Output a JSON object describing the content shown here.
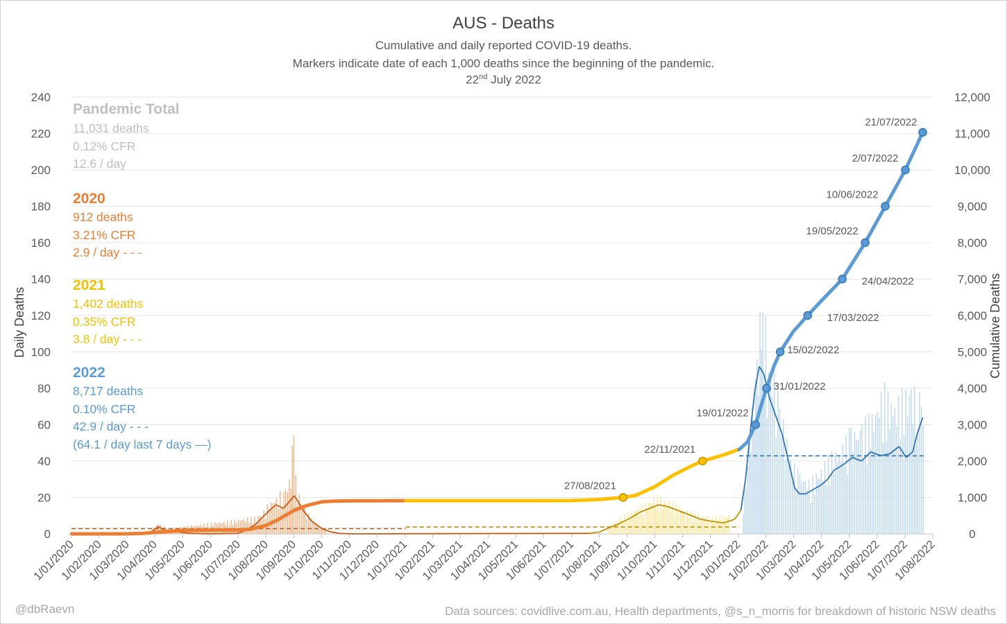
{
  "chart_data": {
    "type": "line",
    "title": "AUS - Deaths",
    "subtitle_1": "Cumulative and daily reported COVID-19 deaths.",
    "subtitle_2": "Markers indicate date of each 1,000 deaths since the beginning of the pandemic.",
    "date_day": "22",
    "date_suffix": "nd",
    "date_rest": "July 2022",
    "y_left_label": "Daily Deaths",
    "y_right_label": "Cumulative Deaths",
    "y_left_range": [
      0,
      240
    ],
    "y_right_range": [
      0,
      12000
    ],
    "y_left_ticks": [
      "0",
      "20",
      "40",
      "60",
      "80",
      "100",
      "120",
      "140",
      "160",
      "180",
      "200",
      "220",
      "240"
    ],
    "y_right_ticks": [
      "0",
      "1,000",
      "2,000",
      "3,000",
      "4,000",
      "5,000",
      "6,000",
      "7,000",
      "8,000",
      "9,000",
      "10,000",
      "11,000",
      "12,000"
    ],
    "x_ticks": [
      "1/01/2020",
      "1/02/2020",
      "1/03/2020",
      "1/04/2020",
      "1/05/2020",
      "1/06/2020",
      "1/07/2020",
      "1/08/2020",
      "1/09/2020",
      "1/10/2020",
      "1/11/2020",
      "1/12/2020",
      "1/01/2021",
      "1/02/2021",
      "1/03/2021",
      "1/04/2021",
      "1/05/2021",
      "1/06/2021",
      "1/07/2021",
      "1/08/2021",
      "1/09/2021",
      "1/10/2021",
      "1/11/2021",
      "1/12/2021",
      "1/01/2022",
      "1/02/2022",
      "1/03/2022",
      "1/04/2022",
      "1/05/2022",
      "1/06/2022",
      "1/07/2022",
      "1/08/2022"
    ],
    "gridlines": true,
    "series": [
      {
        "key": "cum2020",
        "color": "#ed7d31",
        "points": [
          [
            "2020-01-01",
            0
          ],
          [
            "2020-03-01",
            0
          ],
          [
            "2020-03-20",
            15
          ],
          [
            "2020-04-01",
            40
          ],
          [
            "2020-04-20",
            70
          ],
          [
            "2020-05-01",
            98
          ],
          [
            "2020-06-01",
            103
          ],
          [
            "2020-07-01",
            106
          ],
          [
            "2020-07-15",
            130
          ],
          [
            "2020-08-01",
            230
          ],
          [
            "2020-08-15",
            400
          ],
          [
            "2020-09-01",
            650
          ],
          [
            "2020-09-15",
            780
          ],
          [
            "2020-10-01",
            880
          ],
          [
            "2020-10-15",
            900
          ],
          [
            "2020-11-01",
            907
          ],
          [
            "2020-12-31",
            912
          ]
        ]
      },
      {
        "key": "cum2021",
        "color": "#ffc000",
        "points": [
          [
            "2021-01-01",
            912
          ],
          [
            "2021-06-01",
            912
          ],
          [
            "2021-07-01",
            915
          ],
          [
            "2021-07-15",
            925
          ],
          [
            "2021-08-01",
            945
          ],
          [
            "2021-08-15",
            975
          ],
          [
            "2021-08-27",
            1000
          ],
          [
            "2021-09-10",
            1060
          ],
          [
            "2021-10-01",
            1300
          ],
          [
            "2021-10-20",
            1600
          ],
          [
            "2021-11-10",
            1870
          ],
          [
            "2021-11-22",
            2000
          ],
          [
            "2021-12-15",
            2170
          ],
          [
            "2021-12-31",
            2314
          ]
        ]
      },
      {
        "key": "cum2022",
        "color": "#5b9bd5",
        "points": [
          [
            "2022-01-01",
            2314
          ],
          [
            "2022-01-10",
            2520
          ],
          [
            "2022-01-19",
            3000
          ],
          [
            "2022-01-26",
            3600
          ],
          [
            "2022-01-31",
            4000
          ],
          [
            "2022-02-08",
            4600
          ],
          [
            "2022-02-15",
            5000
          ],
          [
            "2022-03-01",
            5550
          ],
          [
            "2022-03-17",
            6000
          ],
          [
            "2022-04-01",
            6400
          ],
          [
            "2022-04-24",
            7000
          ],
          [
            "2022-05-19",
            8000
          ],
          [
            "2022-06-10",
            9000
          ],
          [
            "2022-07-02",
            10000
          ],
          [
            "2022-07-21",
            11031
          ]
        ]
      }
    ],
    "daily_avg_lines": [
      {
        "key": "avg2020",
        "color": "#c55a11",
        "value": 2.9,
        "from": "2020-01-01",
        "to": "2021-01-01"
      },
      {
        "key": "avg2021",
        "color": "#bf9000",
        "value": 3.8,
        "from": "2021-01-01",
        "to": "2022-01-01"
      },
      {
        "key": "avg2022",
        "color": "#2e75b6",
        "value": 42.9,
        "from": "2022-01-01",
        "to": "2022-07-22"
      }
    ],
    "daily_rolling_7d": [
      [
        "2020-03-15",
        0.2
      ],
      [
        "2020-03-28",
        1
      ],
      [
        "2020-04-05",
        4
      ],
      [
        "2020-04-12",
        2
      ],
      [
        "2020-04-25",
        1.2
      ],
      [
        "2020-05-10",
        0.3
      ],
      [
        "2020-06-01",
        0
      ],
      [
        "2020-07-01",
        0.3
      ],
      [
        "2020-07-10",
        2
      ],
      [
        "2020-07-20",
        5
      ],
      [
        "2020-07-28",
        9
      ],
      [
        "2020-08-05",
        13
      ],
      [
        "2020-08-12",
        16
      ],
      [
        "2020-08-20",
        14
      ],
      [
        "2020-08-27",
        18
      ],
      [
        "2020-09-01",
        21
      ],
      [
        "2020-09-06",
        17
      ],
      [
        "2020-09-12",
        12
      ],
      [
        "2020-09-20",
        7
      ],
      [
        "2020-10-01",
        3
      ],
      [
        "2020-10-10",
        1.2
      ],
      [
        "2020-10-20",
        0.3
      ],
      [
        "2020-11-05",
        0
      ],
      [
        "2021-07-20",
        0.3
      ],
      [
        "2021-08-01",
        1
      ],
      [
        "2021-08-10",
        3
      ],
      [
        "2021-08-20",
        5
      ],
      [
        "2021-08-28",
        7
      ],
      [
        "2021-09-05",
        9
      ],
      [
        "2021-09-15",
        12
      ],
      [
        "2021-09-25",
        14
      ],
      [
        "2021-10-05",
        16
      ],
      [
        "2021-10-15",
        15
      ],
      [
        "2021-10-25",
        13
      ],
      [
        "2021-11-05",
        11
      ],
      [
        "2021-11-20",
        8
      ],
      [
        "2021-12-01",
        7
      ],
      [
        "2021-12-15",
        6
      ],
      [
        "2021-12-27",
        8
      ],
      [
        "2022-01-03",
        13
      ],
      [
        "2022-01-08",
        30
      ],
      [
        "2022-01-13",
        55
      ],
      [
        "2022-01-18",
        78
      ],
      [
        "2022-01-23",
        92
      ],
      [
        "2022-01-28",
        88
      ],
      [
        "2022-02-03",
        75
      ],
      [
        "2022-02-10",
        65
      ],
      [
        "2022-02-17",
        55
      ],
      [
        "2022-02-24",
        40
      ],
      [
        "2022-03-03",
        25
      ],
      [
        "2022-03-08",
        22
      ],
      [
        "2022-03-15",
        22
      ],
      [
        "2022-03-22",
        24
      ],
      [
        "2022-04-01",
        27
      ],
      [
        "2022-04-08",
        30
      ],
      [
        "2022-04-15",
        35
      ],
      [
        "2022-04-25",
        38
      ],
      [
        "2022-05-05",
        42
      ],
      [
        "2022-05-15",
        40
      ],
      [
        "2022-05-25",
        45
      ],
      [
        "2022-06-05",
        43
      ],
      [
        "2022-06-15",
        44
      ],
      [
        "2022-06-25",
        48
      ],
      [
        "2022-07-03",
        42
      ],
      [
        "2022-07-10",
        45
      ],
      [
        "2022-07-15",
        55
      ],
      [
        "2022-07-21",
        64
      ]
    ],
    "daily_bars": [
      {
        "color": "#f4b183",
        "points": [
          [
            "2020-03-28",
            3
          ],
          [
            "2020-04-05",
            6
          ],
          [
            "2020-04-15",
            3
          ],
          [
            "2020-07-25",
            10
          ],
          [
            "2020-08-04",
            18
          ],
          [
            "2020-08-14",
            22
          ],
          [
            "2020-08-20",
            26
          ],
          [
            "2020-08-26",
            30
          ],
          [
            "2020-08-31",
            59
          ],
          [
            "2020-09-04",
            25
          ],
          [
            "2020-09-10",
            18
          ],
          [
            "2020-09-18",
            9
          ],
          [
            "2020-09-26",
            5
          ],
          [
            "2020-10-05",
            2
          ]
        ]
      },
      {
        "color": "#ffe699",
        "points": [
          [
            "2021-08-10",
            4
          ],
          [
            "2021-08-22",
            9
          ],
          [
            "2021-09-01",
            12
          ],
          [
            "2021-09-12",
            15
          ],
          [
            "2021-09-22",
            18
          ],
          [
            "2021-10-01",
            22
          ],
          [
            "2021-10-10",
            20
          ],
          [
            "2021-10-20",
            18
          ],
          [
            "2021-11-01",
            14
          ],
          [
            "2021-11-15",
            11
          ],
          [
            "2021-12-01",
            10
          ],
          [
            "2021-12-20",
            11
          ]
        ]
      },
      {
        "color": "#bdd7ee",
        "points": [
          [
            "2022-01-05",
            20
          ],
          [
            "2022-01-10",
            45
          ],
          [
            "2022-01-15",
            70
          ],
          [
            "2022-01-20",
            100
          ],
          [
            "2022-01-25",
            134
          ],
          [
            "2022-01-28",
            130
          ],
          [
            "2022-02-02",
            100
          ],
          [
            "2022-02-08",
            90
          ],
          [
            "2022-02-14",
            75
          ],
          [
            "2022-02-20",
            60
          ],
          [
            "2022-02-28",
            40
          ],
          [
            "2022-03-08",
            35
          ],
          [
            "2022-03-18",
            30
          ],
          [
            "2022-03-28",
            35
          ],
          [
            "2022-04-10",
            45
          ],
          [
            "2022-04-22",
            50
          ],
          [
            "2022-05-03",
            60
          ],
          [
            "2022-05-15",
            62
          ],
          [
            "2022-05-28",
            70
          ],
          [
            "2022-06-07",
            85
          ],
          [
            "2022-06-18",
            75
          ],
          [
            "2022-06-28",
            80
          ],
          [
            "2022-07-08",
            85
          ],
          [
            "2022-07-15",
            80
          ],
          [
            "2022-07-21",
            88
          ]
        ]
      }
    ],
    "markers": [
      {
        "date": "2021-08-27",
        "value": 1000,
        "label": "27/08/2021",
        "fill": "#ffc000",
        "stroke": "#bf9000",
        "pos": "left"
      },
      {
        "date": "2021-11-22",
        "value": 2000,
        "label": "22/11/2021",
        "fill": "#ffc000",
        "stroke": "#bf9000",
        "pos": "left"
      },
      {
        "date": "2022-01-19",
        "value": 3000,
        "label": "19/01/2022",
        "fill": "#5b9bd5",
        "stroke": "#2e75b6",
        "pos": "left"
      },
      {
        "date": "2022-01-31",
        "value": 4000,
        "label": "31/01/2022",
        "fill": "#5b9bd5",
        "stroke": "#2e75b6",
        "pos": "right"
      },
      {
        "date": "2022-02-15",
        "value": 5000,
        "label": "15/02/2022",
        "fill": "#5b9bd5",
        "stroke": "#2e75b6",
        "pos": "right"
      },
      {
        "date": "2022-03-17",
        "value": 6000,
        "label": "17/03/2022",
        "fill": "#5b9bd5",
        "stroke": "#2e75b6",
        "pos": "below-right"
      },
      {
        "date": "2022-04-24",
        "value": 7000,
        "label": "24/04/2022",
        "fill": "#5b9bd5",
        "stroke": "#2e75b6",
        "pos": "below-right"
      },
      {
        "date": "2022-05-19",
        "value": 8000,
        "label": "19/05/2022",
        "fill": "#5b9bd5",
        "stroke": "#2e75b6",
        "pos": "left"
      },
      {
        "date": "2022-06-10",
        "value": 9000,
        "label": "10/06/2022",
        "fill": "#5b9bd5",
        "stroke": "#2e75b6",
        "pos": "left"
      },
      {
        "date": "2022-07-02",
        "value": 10000,
        "label": "2/07/2022",
        "fill": "#5b9bd5",
        "stroke": "#2e75b6",
        "pos": "left"
      },
      {
        "date": "2022-07-21",
        "value": 11031,
        "label": "21/07/2022",
        "fill": "#5b9bd5",
        "stroke": "#2e75b6",
        "pos": "above-left"
      }
    ]
  },
  "stats": {
    "pandemic": {
      "heading": "Pandemic Total",
      "deaths": "11,031 deaths",
      "cfr": "0.12% CFR",
      "per_day": "12.6 / day"
    },
    "y2020": {
      "heading": "2020",
      "deaths": "912 deaths",
      "cfr": "3.21% CFR",
      "per_day": "2.9 / day - - -"
    },
    "y2021": {
      "heading": "2021",
      "deaths": "1,402 deaths",
      "cfr": "0.35% CFR",
      "per_day": "3.8 / day - - -"
    },
    "y2022": {
      "heading": "2022",
      "deaths": "8,717 deaths",
      "cfr": "0.10% CFR",
      "per_day": "42.9 / day - - -",
      "last7": "(64.1 / day last 7 days —)"
    }
  },
  "footer": {
    "author": "@dbRaevn",
    "sources": "Data sources: covidlive.com.au, Health departments, @s_n_morris for breakdown of historic NSW deaths"
  }
}
